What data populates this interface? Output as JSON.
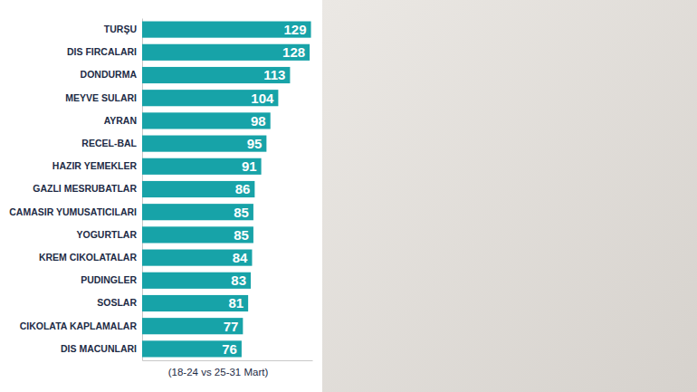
{
  "chart_data": {
    "type": "bar",
    "orientation": "horizontal",
    "categories": [
      "TURŞU",
      "DIS FIRCALARI",
      "DONDURMA",
      "MEYVE SULARI",
      "AYRAN",
      "RECEL-BAL",
      "HAZIR YEMEKLER",
      "GAZLI MESRUBATLAR",
      "CAMASIR YUMUSATICILARI",
      "YOGURTLAR",
      "KREM CIKOLATALAR",
      "PUDINGLER",
      "SOSLAR",
      "CIKOLATA KAPLAMALAR",
      "DIS MACUNLARI"
    ],
    "values": [
      129,
      128,
      113,
      104,
      98,
      95,
      91,
      86,
      85,
      85,
      84,
      83,
      81,
      77,
      76
    ],
    "color": "#17a3a8",
    "xlim": [
      0,
      130
    ],
    "data_labels": true,
    "tick_labels": "y",
    "grid": false,
    "annotations": [
      "(18-24 vs 25-31 Mart)"
    ]
  }
}
